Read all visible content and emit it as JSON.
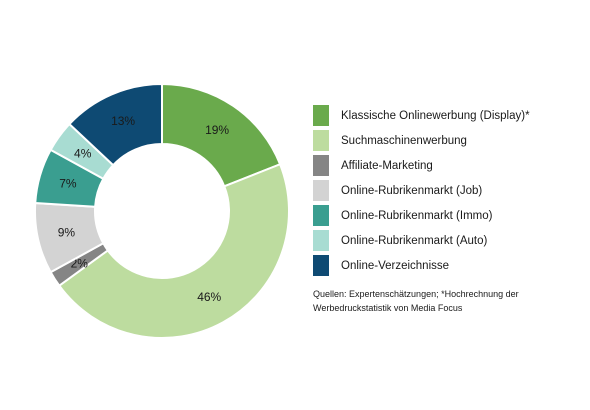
{
  "chart_data": {
    "type": "pie",
    "donut": true,
    "slices": [
      {
        "name": "Klassische Onlinewerbung (Display)*",
        "value": 19,
        "label": "19%",
        "color": "#6aaa4c"
      },
      {
        "name": "Suchmaschinenwerbung",
        "value": 46,
        "label": "46%",
        "color": "#bddc9f"
      },
      {
        "name": "Affiliate-Marketing",
        "value": 2,
        "label": "2%",
        "color": "#858585"
      },
      {
        "name": "Online-Rubrikenmarkt (Job)",
        "value": 9,
        "label": "9%",
        "color": "#d3d3d3"
      },
      {
        "name": "Online-Rubrikenmarkt (Immo)",
        "value": 7,
        "label": "7%",
        "color": "#3a9e90"
      },
      {
        "name": "Online-Rubrikenmarkt (Auto)",
        "value": 4,
        "label": "4%",
        "color": "#a8dcd2"
      },
      {
        "name": "Online-Verzeichnisse",
        "value": 13,
        "label": "13%",
        "color": "#0e4a73"
      }
    ],
    "legend_placement": "right",
    "source_note": "Quellen: Expertenschätzungen; *Hochrechnung der Werbedruckstatistik von Media Focus"
  }
}
